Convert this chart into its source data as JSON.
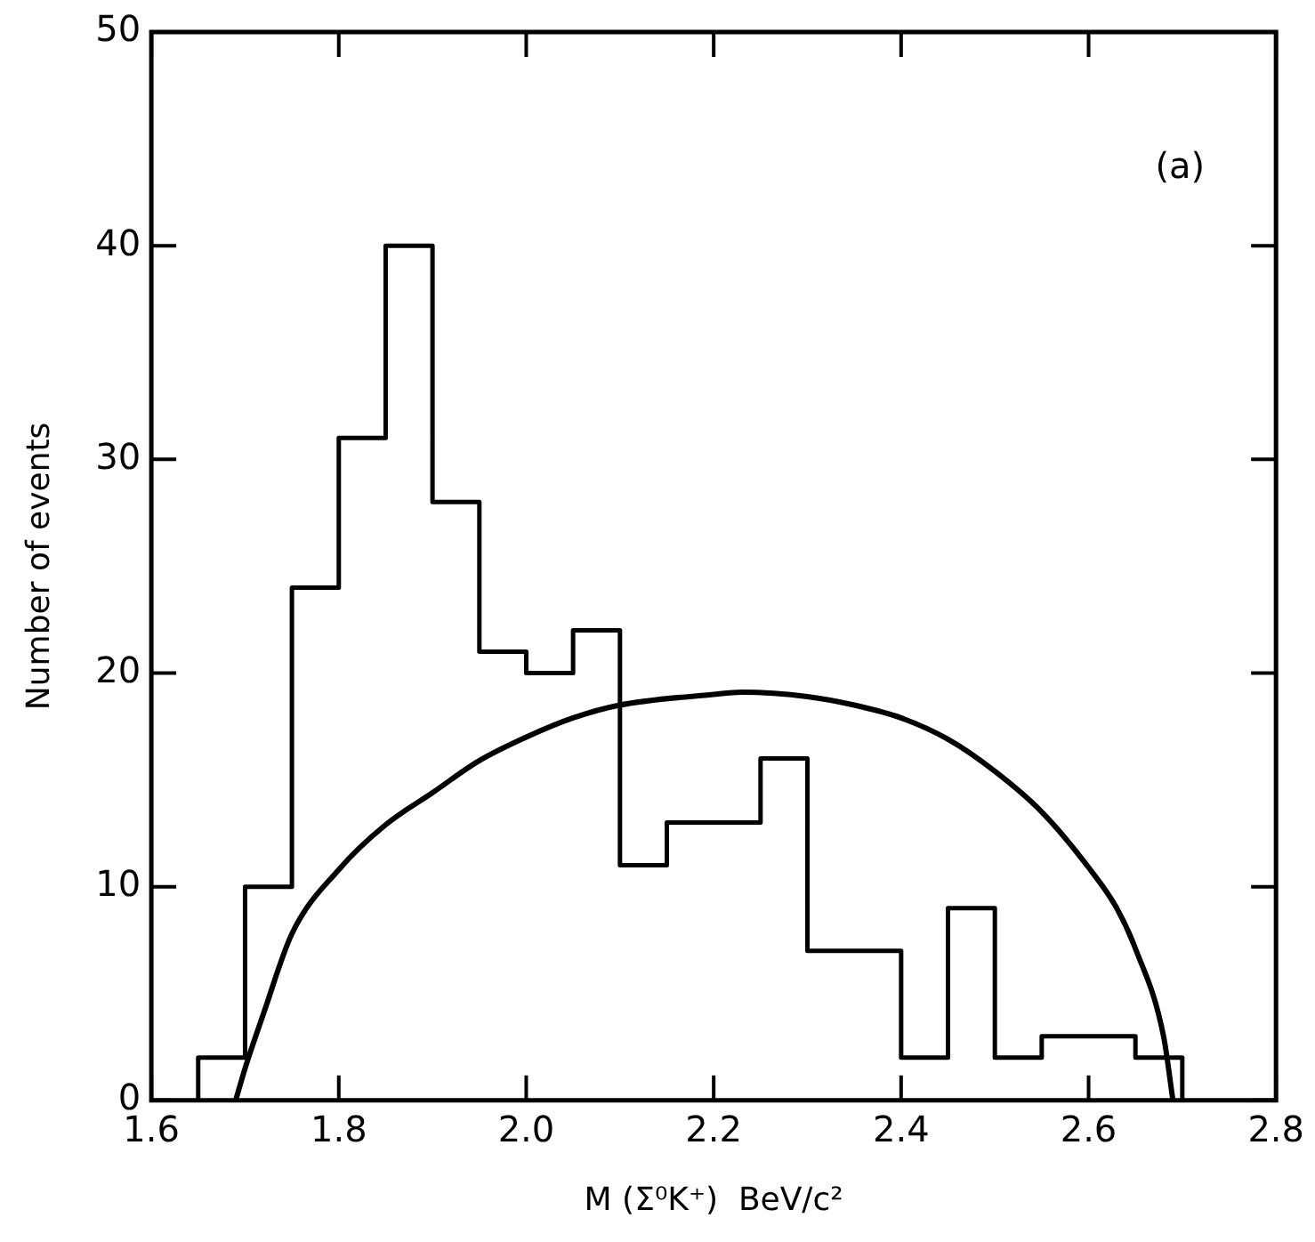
{
  "chart_data": {
    "type": "histogram",
    "xlabel": "M (Σ⁰K⁺)  BeV/c²",
    "ylabel": "Number of events",
    "annotations": [
      "(a)"
    ],
    "bins": [
      1.65,
      1.7,
      1.75,
      1.8,
      1.85,
      1.9,
      1.95,
      2.0,
      2.05,
      2.1,
      2.15,
      2.2,
      2.25,
      2.3,
      2.35,
      2.4,
      2.45,
      2.5,
      2.55,
      2.6,
      2.65,
      2.7
    ],
    "values": [
      2,
      10,
      24,
      31,
      40,
      28,
      21,
      20,
      22,
      11,
      13,
      13,
      16,
      7,
      7,
      2,
      9,
      2,
      3,
      3,
      2
    ],
    "color": "#000000",
    "series": [
      {
        "type": "line",
        "color": "#000000",
        "x": [
          1.69,
          1.7,
          1.72,
          1.75,
          1.8,
          1.85,
          1.9,
          1.95,
          2.0,
          2.05,
          2.1,
          2.2,
          2.23,
          2.3,
          2.35,
          2.4,
          2.45,
          2.5,
          2.55,
          2.6,
          2.63,
          2.65,
          2.68,
          2.69
        ],
        "values": [
          0,
          1.5,
          4.1,
          7.8,
          10.8,
          12.9,
          14.4,
          15.9,
          17,
          17.9,
          18.5,
          19,
          19.1,
          18.9,
          18.5,
          17.9,
          16.9,
          15.4,
          13.5,
          10.9,
          9,
          7.1,
          3,
          0
        ]
      }
    ],
    "xlim": [
      1.6,
      2.8
    ],
    "xticks": [
      1.6,
      1.8,
      {
        "value": 2,
        "label": "2.0"
      },
      2.2,
      2.4,
      2.6,
      2.8
    ],
    "ylim": [
      0,
      50
    ],
    "yticks": [
      0,
      10,
      20,
      30,
      40,
      50
    ],
    "grid": false,
    "legend": false,
    "marker": "none",
    "line_style": "solid"
  }
}
